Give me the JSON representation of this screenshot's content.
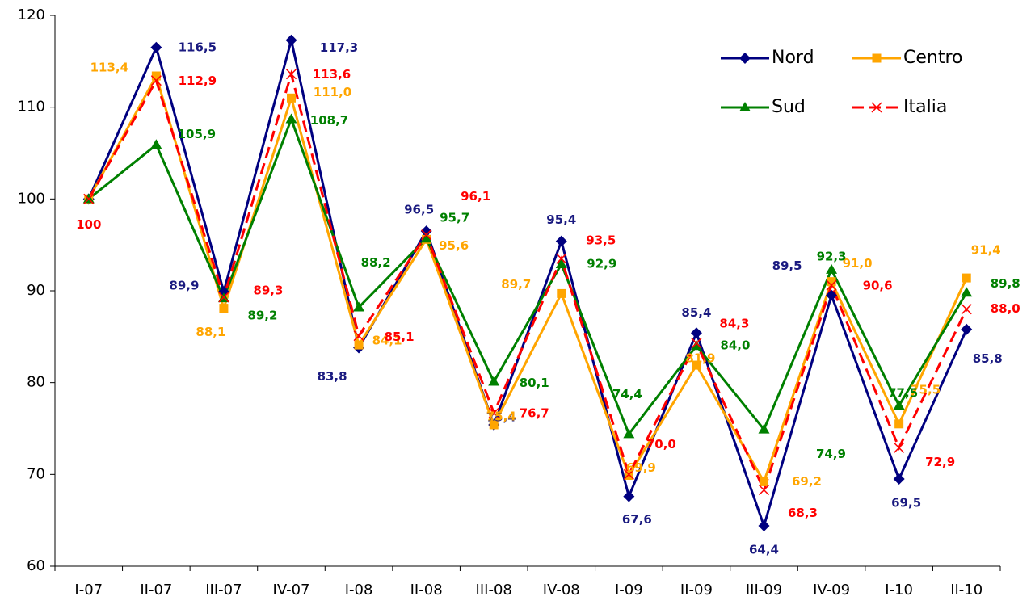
{
  "chart_data": {
    "type": "line",
    "categories": [
      "I-07",
      "II-07",
      "III-07",
      "IV-07",
      "I-08",
      "II-08",
      "III-08",
      "IV-08",
      "I-09",
      "II-09",
      "III-09",
      "IV-09",
      "I-10",
      "II-10"
    ],
    "series": [
      {
        "name": "Nord",
        "color": "#000080",
        "marker": "diamond",
        "values": [
          100,
          116.5,
          89.9,
          117.3,
          83.8,
          96.5,
          75.4,
          95.4,
          67.6,
          85.4,
          64.4,
          89.5,
          69.5,
          85.8
        ],
        "value_labels": [
          null,
          "116,5",
          "89,9",
          "117,3",
          "83,8",
          "96,5",
          "75,4",
          "95,4",
          "67,6",
          "85,4",
          "64,4",
          "89,5",
          "69,5",
          "85,8"
        ]
      },
      {
        "name": "Centro",
        "color": "#ffa500",
        "marker": "square",
        "values": [
          100,
          113.4,
          88.1,
          111.0,
          84.1,
          95.6,
          75.4,
          89.7,
          69.9,
          81.9,
          69.2,
          91.0,
          75.5,
          91.4
        ],
        "value_labels": [
          null,
          "113,4",
          "88,1",
          "111,0",
          "84,1",
          "95,6",
          "75,4",
          "89,7",
          "69,9",
          "81,9",
          "69,2",
          "91,0",
          "75,5",
          "91,4"
        ]
      },
      {
        "name": "Sud",
        "color": "#008000",
        "marker": "triangle",
        "values": [
          100,
          105.9,
          89.2,
          108.7,
          88.2,
          95.7,
          80.1,
          92.9,
          74.4,
          84.0,
          74.9,
          92.3,
          77.5,
          89.8
        ],
        "value_labels": [
          null,
          "105,9",
          "89,2",
          "108,7",
          "88,2",
          "95,7",
          "80,1",
          "92,9",
          "74,4",
          "84,0",
          "74,9",
          "92,3",
          "77,5",
          "89,8"
        ]
      },
      {
        "name": "Italia",
        "color": "#ff0000",
        "marker": "x",
        "dashed": true,
        "values": [
          100,
          112.9,
          89.3,
          113.6,
          85.1,
          96.1,
          76.7,
          93.5,
          70.0,
          84.3,
          68.3,
          90.6,
          72.9,
          88.0
        ],
        "value_labels": [
          "100",
          "112,9",
          "89,3",
          "113,6",
          "85,1",
          "96,1",
          "76,7",
          "93,5",
          "70,0",
          "84,3",
          "68,3",
          "90,6",
          "72,9",
          "88,0"
        ]
      }
    ],
    "ylim": [
      60,
      120
    ],
    "yticks": [
      60,
      70,
      80,
      90,
      100,
      110,
      120
    ],
    "grid": false,
    "legend": "upper right"
  }
}
